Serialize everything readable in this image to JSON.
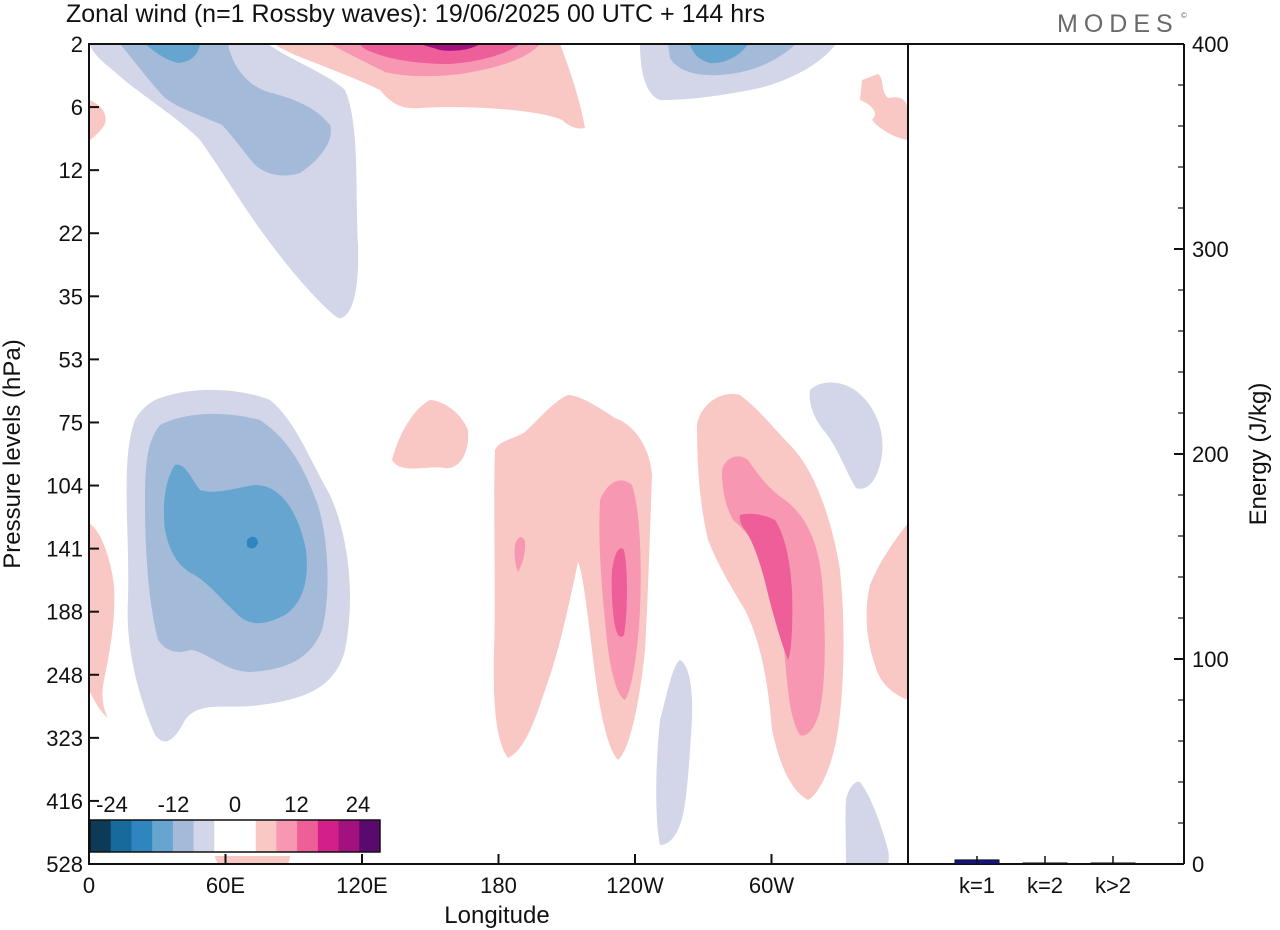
{
  "header": {
    "title": "Zonal wind (n=1 Rossby waves):  19/06/2025  00 UTC  + 144 hrs",
    "brand": "MODES",
    "brand_mark": "©"
  },
  "colorbar": {
    "labels": [
      "-24",
      "-12",
      "0",
      "12",
      "24"
    ],
    "colors": [
      "#0d3b57",
      "#166b9c",
      "#2f86bf",
      "#65a5d0",
      "#a4bad9",
      "#d3d6e8",
      "#ffffff",
      "#ffffff",
      "#f9c8c4",
      "#f797b1",
      "#ee5f9a",
      "#d31f88",
      "#a2117d",
      "#5a0a6e"
    ]
  },
  "chart_data": [
    {
      "type": "heatmap",
      "title": "Zonal wind (n=1 Rossby waves):  19/06/2025  00 UTC  + 144 hrs",
      "xlabel": "Longitude",
      "ylabel": "Pressure levels (hPa)",
      "x_ticks": [
        "0",
        "60E",
        "120E",
        "180",
        "120W",
        "60W"
      ],
      "x_tick_degrees": [
        0,
        60,
        120,
        180,
        240,
        300
      ],
      "xlim": [
        0,
        360
      ],
      "y_ticks": [
        "2",
        "6",
        "12",
        "22",
        "35",
        "53",
        "75",
        "104",
        "141",
        "188",
        "248",
        "323",
        "416",
        "528"
      ],
      "y_scale": "pressure levels (log-like, inverted)",
      "contour_levels": [
        -24,
        -20,
        -16,
        -12,
        -8,
        -4,
        0,
        4,
        8,
        12,
        16,
        20,
        24
      ],
      "features": [
        {
          "sign": "negative",
          "lon_center": 70,
          "level_center": "141",
          "peak": -20
        },
        {
          "sign": "negative",
          "lon_center": 50,
          "level_center": "6",
          "peak": -12
        },
        {
          "sign": "negative",
          "lon_center": 270,
          "level_center": "2",
          "peak": -12
        },
        {
          "sign": "positive",
          "lon_center": 165,
          "level_center": "2",
          "peak": 16
        },
        {
          "sign": "positive",
          "lon_center": 240,
          "level_center": "188",
          "peak": 12
        },
        {
          "sign": "positive",
          "lon_center": 300,
          "level_center": "141",
          "peak": 8
        }
      ]
    },
    {
      "type": "bar",
      "ylabel": "Energy (J/kg)",
      "ylim": [
        0,
        400
      ],
      "y_ticks": [
        "0",
        "100",
        "200",
        "300",
        "400"
      ],
      "categories": [
        "k=1",
        "k=2",
        "k>2"
      ],
      "values": [
        2,
        0.5,
        0.5
      ],
      "bar_colors": [
        "#14148a",
        "#111111",
        "#111111"
      ]
    }
  ]
}
